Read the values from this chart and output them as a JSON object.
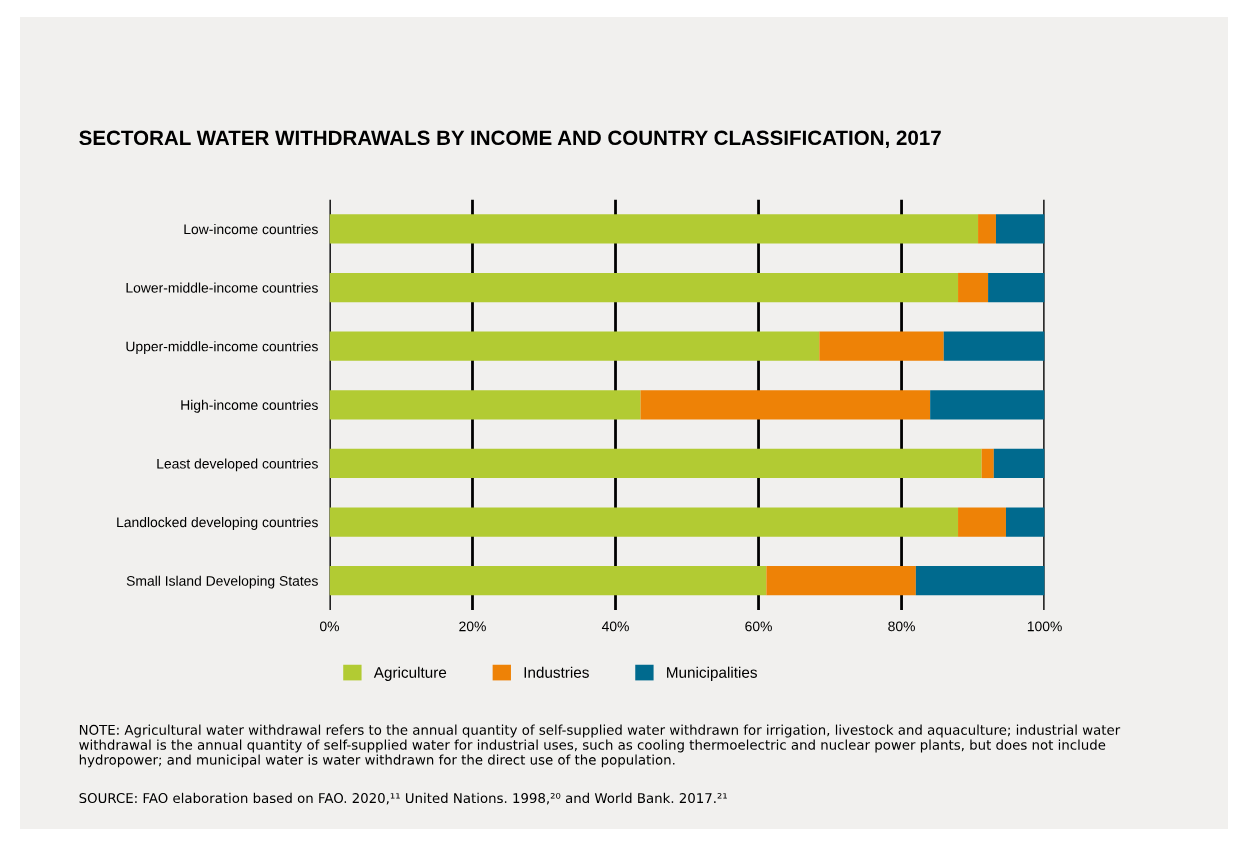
{
  "chart_data": {
    "type": "bar",
    "orientation": "horizontal",
    "stacked": true,
    "title": "SECTORAL WATER WITHDRAWALS BY INCOME AND COUNTRY CLASSIFICATION, 2017",
    "categories": [
      "Low-income countries",
      "Lower-middle-income countries",
      "Upper-middle-income countries",
      "High-income countries",
      "Least developed countries",
      "Landlocked developing countries",
      "Small Island Developing States"
    ],
    "series": [
      {
        "name": "Agriculture",
        "color": "#b2cb33",
        "values": [
          90.7,
          87.9,
          68.5,
          43.5,
          91.2,
          87.9,
          61.1
        ]
      },
      {
        "name": "Industries",
        "color": "#ee8206",
        "values": [
          2.5,
          4.2,
          17.4,
          40.5,
          1.7,
          6.7,
          20.9
        ]
      },
      {
        "name": "Municipalities",
        "color": "#006a8e",
        "values": [
          6.8,
          7.9,
          14.1,
          16.0,
          7.1,
          5.4,
          18.0
        ]
      }
    ],
    "xlim": [
      0,
      100
    ],
    "xticks": [
      {
        "value": 0,
        "label": "0%"
      },
      {
        "value": 20,
        "label": "20%"
      },
      {
        "value": 40,
        "label": "40%"
      },
      {
        "value": 60,
        "label": "60%"
      },
      {
        "value": 80,
        "label": "80%"
      },
      {
        "value": 100,
        "label": "100%"
      }
    ],
    "grid": "x",
    "legend": "bottom left",
    "annotations": [
      "NOTE: Agricultural water withdrawal refers to the annual quantity of self-supplied water withdrawn for irrigation, livestock and aquaculture; industrial water withdrawal is the annual quantity of self-supplied water for industrial uses, such as cooling thermoelectric and nuclear power plants, but does not include hydropower; and municipal water is water withdrawn for the direct use of the population.",
      "SOURCE: FAO elaboration based on FAO. 2020,¹¹ United Nations. 1998,²⁰ and World Bank. 2017.²¹"
    ]
  }
}
